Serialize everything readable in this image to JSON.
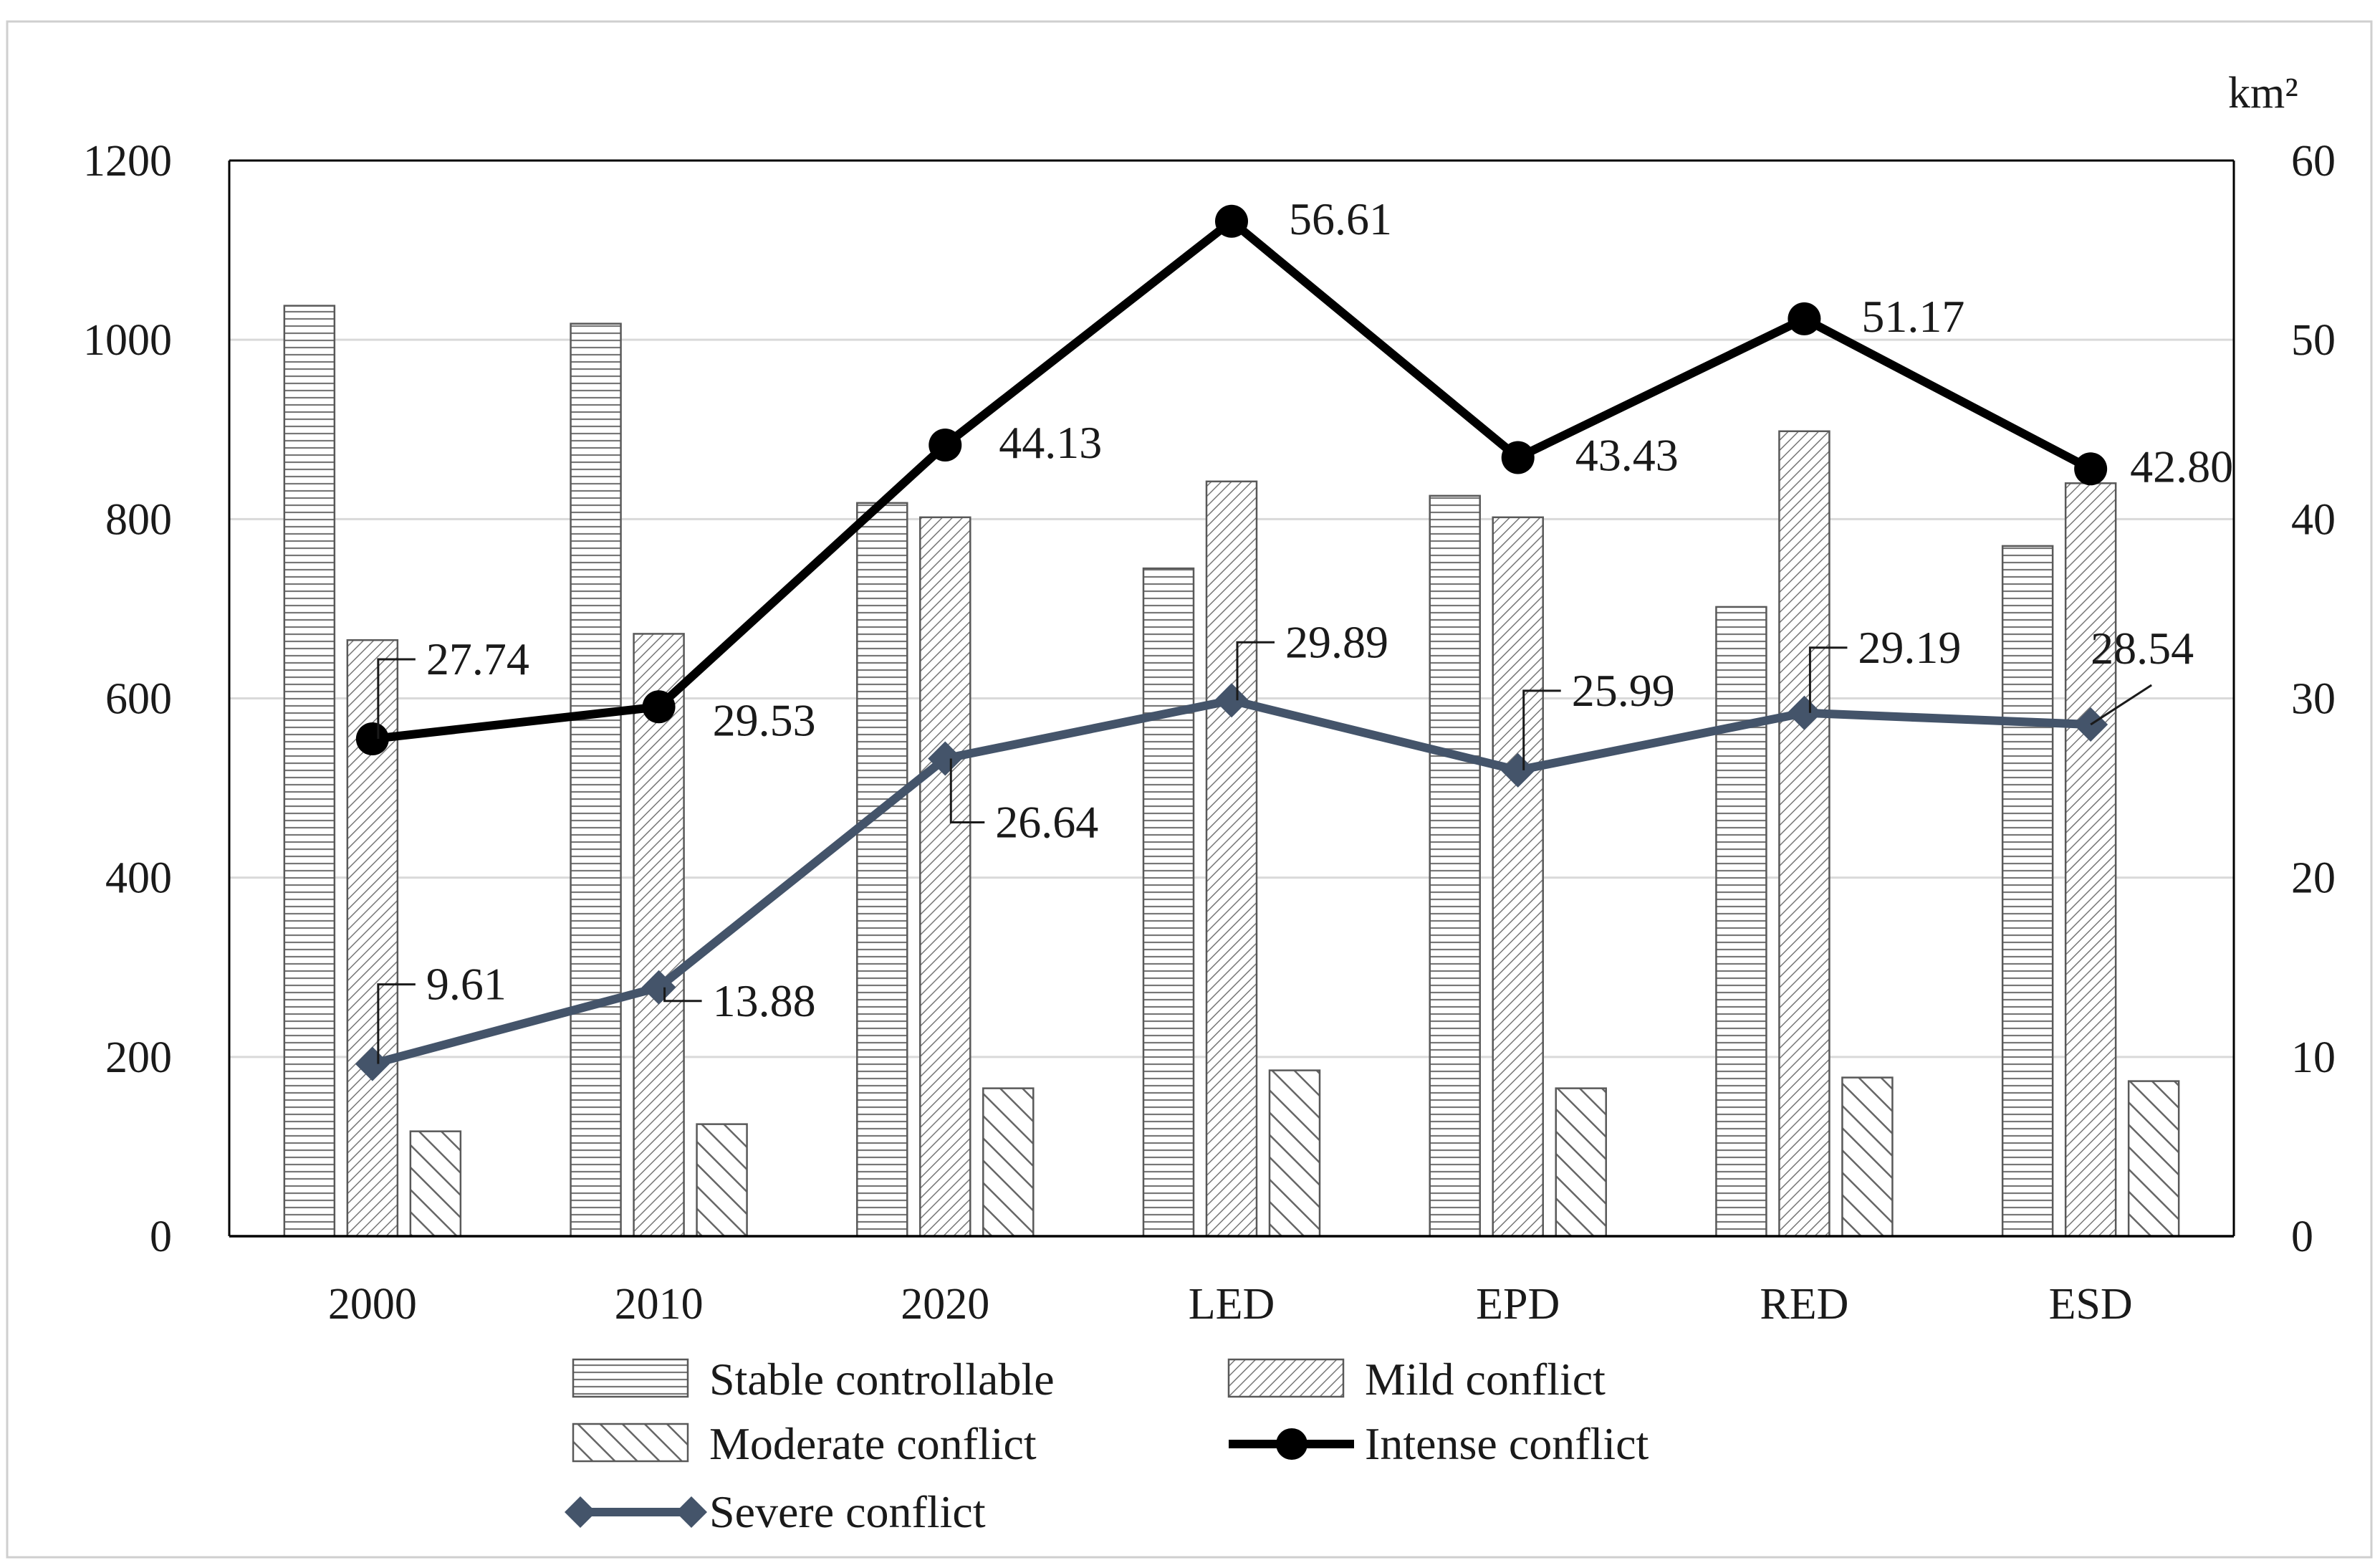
{
  "chart_data": {
    "type": "bar+line",
    "categories": [
      "2000",
      "2010",
      "2020",
      "LED",
      "EPD",
      "RED",
      "ESD"
    ],
    "left_axis": {
      "ylim": [
        0,
        1200
      ],
      "ticks": [
        "0",
        "200",
        "400",
        "600",
        "800",
        "1000",
        "1200"
      ]
    },
    "right_axis": {
      "ylim": [
        0,
        60
      ],
      "ticks": [
        "0",
        "10",
        "20",
        "30",
        "40",
        "50",
        "60"
      ],
      "unit": "km²"
    },
    "bar_series": [
      {
        "name": "Stable controllable",
        "pattern": "horizontal",
        "axis": "left",
        "values": [
          1038,
          1018,
          818,
          745,
          826,
          702,
          770
        ]
      },
      {
        "name": "Mild conflict",
        "pattern": "fine-diagonal",
        "axis": "left",
        "values": [
          665,
          672,
          802,
          842,
          802,
          898,
          840
        ]
      },
      {
        "name": "Moderate conflict",
        "pattern": "wide-diagonal",
        "axis": "left",
        "values": [
          117,
          125,
          165,
          185,
          165,
          177,
          173
        ]
      }
    ],
    "line_series": [
      {
        "name": "Intense conflict",
        "axis": "right",
        "color": "#000000",
        "marker": "circle",
        "values": [
          27.74,
          29.53,
          44.13,
          56.61,
          43.43,
          51.17,
          42.8
        ],
        "labels": [
          "27.74",
          "29.53",
          "44.13",
          "56.61",
          "43.43",
          "51.17",
          "42.80"
        ]
      },
      {
        "name": "Severe conflict",
        "axis": "right",
        "color": "#44546a",
        "marker": "diamond",
        "values": [
          9.61,
          13.88,
          26.64,
          29.89,
          25.99,
          29.19,
          28.54
        ],
        "labels": [
          "9.61",
          "13.88",
          "26.64",
          "29.89",
          "25.99",
          "29.19",
          "28.54"
        ]
      }
    ],
    "legend": {
      "position": "bottom",
      "items": [
        "Stable controllable",
        "Mild conflict",
        "Moderate conflict",
        "Intense conflict",
        "Severe conflict"
      ]
    },
    "title": "",
    "xlabel": "",
    "ylabel": "",
    "grid": true
  }
}
